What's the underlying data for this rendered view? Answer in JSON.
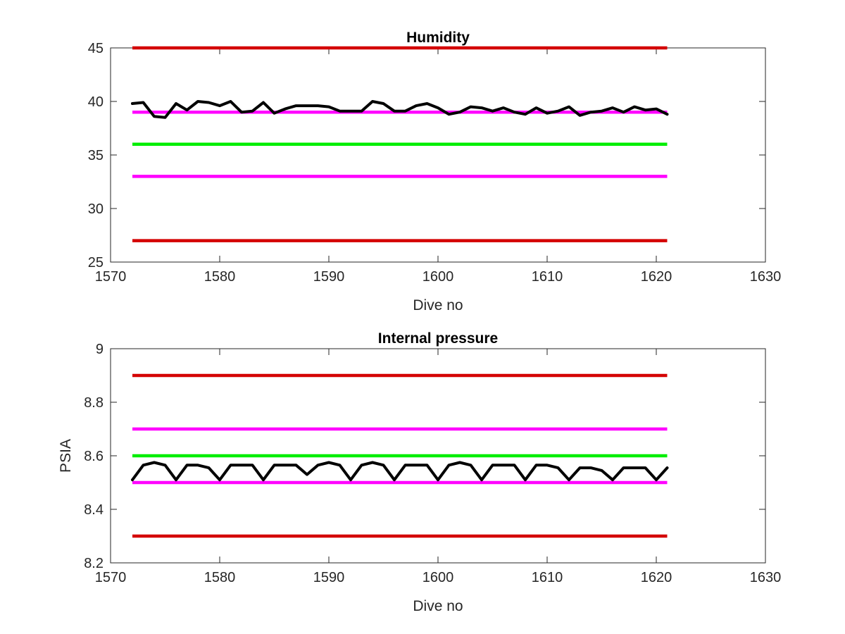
{
  "chart_data": [
    {
      "type": "line",
      "title": "Humidity",
      "xlabel": "Dive no",
      "ylabel": "",
      "xlim": [
        1570,
        1630
      ],
      "ylim": [
        25,
        45
      ],
      "xticks": [
        1570,
        1580,
        1590,
        1600,
        1610,
        1620,
        1630
      ],
      "yticks": [
        25,
        30,
        35,
        40,
        45
      ],
      "grid": false,
      "legend": "none",
      "reference_lines": [
        {
          "y": 45,
          "x": [
            1572,
            1621
          ],
          "color": "#d40000"
        },
        {
          "y": 39,
          "x": [
            1572,
            1621
          ],
          "color": "#ff00ff"
        },
        {
          "y": 36,
          "x": [
            1572,
            1621
          ],
          "color": "#00ee00"
        },
        {
          "y": 33,
          "x": [
            1572,
            1621
          ],
          "color": "#ff00ff"
        },
        {
          "y": 27,
          "x": [
            1572,
            1621
          ],
          "color": "#d40000"
        }
      ],
      "series": [
        {
          "color": "#000000",
          "x": [
            1572,
            1573,
            1574,
            1575,
            1576,
            1577,
            1578,
            1579,
            1580,
            1581,
            1582,
            1583,
            1584,
            1585,
            1586,
            1587,
            1588,
            1589,
            1590,
            1591,
            1592,
            1593,
            1594,
            1595,
            1596,
            1597,
            1598,
            1599,
            1600,
            1601,
            1602,
            1603,
            1604,
            1605,
            1606,
            1607,
            1608,
            1609,
            1610,
            1611,
            1612,
            1613,
            1614,
            1615,
            1616,
            1617,
            1618,
            1619,
            1620,
            1621
          ],
          "y": [
            39.8,
            39.9,
            38.6,
            38.5,
            39.8,
            39.2,
            40.0,
            39.9,
            39.6,
            40.0,
            39.0,
            39.1,
            39.9,
            38.9,
            39.3,
            39.6,
            39.6,
            39.6,
            39.5,
            39.1,
            39.1,
            39.1,
            40.0,
            39.8,
            39.1,
            39.1,
            39.6,
            39.8,
            39.4,
            38.8,
            39.0,
            39.5,
            39.4,
            39.1,
            39.4,
            39.0,
            38.8,
            39.4,
            38.9,
            39.1,
            39.5,
            38.7,
            39.0,
            39.1,
            39.4,
            39.0,
            39.5,
            39.2,
            39.3,
            38.8
          ]
        }
      ]
    },
    {
      "type": "line",
      "title": "Internal pressure",
      "xlabel": "Dive no",
      "ylabel": "PSIA",
      "xlim": [
        1570,
        1630
      ],
      "ylim": [
        8.2,
        9
      ],
      "xticks": [
        1570,
        1580,
        1590,
        1600,
        1610,
        1620,
        1630
      ],
      "yticks": [
        8.2,
        8.4,
        8.6,
        8.8,
        9
      ],
      "grid": false,
      "legend": "none",
      "reference_lines": [
        {
          "y": 8.9,
          "x": [
            1572,
            1621
          ],
          "color": "#d40000"
        },
        {
          "y": 8.7,
          "x": [
            1572,
            1621
          ],
          "color": "#ff00ff"
        },
        {
          "y": 8.6,
          "x": [
            1572,
            1621
          ],
          "color": "#00ee00"
        },
        {
          "y": 8.5,
          "x": [
            1572,
            1621
          ],
          "color": "#ff00ff"
        },
        {
          "y": 8.3,
          "x": [
            1572,
            1621
          ],
          "color": "#d40000"
        }
      ],
      "series": [
        {
          "color": "#000000",
          "x": [
            1572,
            1573,
            1574,
            1575,
            1576,
            1577,
            1578,
            1579,
            1580,
            1581,
            1582,
            1583,
            1584,
            1585,
            1586,
            1587,
            1588,
            1589,
            1590,
            1591,
            1592,
            1593,
            1594,
            1595,
            1596,
            1597,
            1598,
            1599,
            1600,
            1601,
            1602,
            1603,
            1604,
            1605,
            1606,
            1607,
            1608,
            1609,
            1610,
            1611,
            1612,
            1613,
            1614,
            1615,
            1616,
            1617,
            1618,
            1619,
            1620,
            1621
          ],
          "y": [
            8.51,
            8.565,
            8.575,
            8.565,
            8.51,
            8.565,
            8.565,
            8.555,
            8.51,
            8.565,
            8.565,
            8.565,
            8.51,
            8.565,
            8.565,
            8.565,
            8.53,
            8.565,
            8.575,
            8.565,
            8.51,
            8.565,
            8.575,
            8.565,
            8.51,
            8.565,
            8.565,
            8.565,
            8.51,
            8.565,
            8.575,
            8.565,
            8.51,
            8.565,
            8.565,
            8.565,
            8.51,
            8.565,
            8.565,
            8.555,
            8.51,
            8.555,
            8.555,
            8.545,
            8.51,
            8.555,
            8.555,
            8.555,
            8.51,
            8.555
          ]
        }
      ]
    }
  ]
}
